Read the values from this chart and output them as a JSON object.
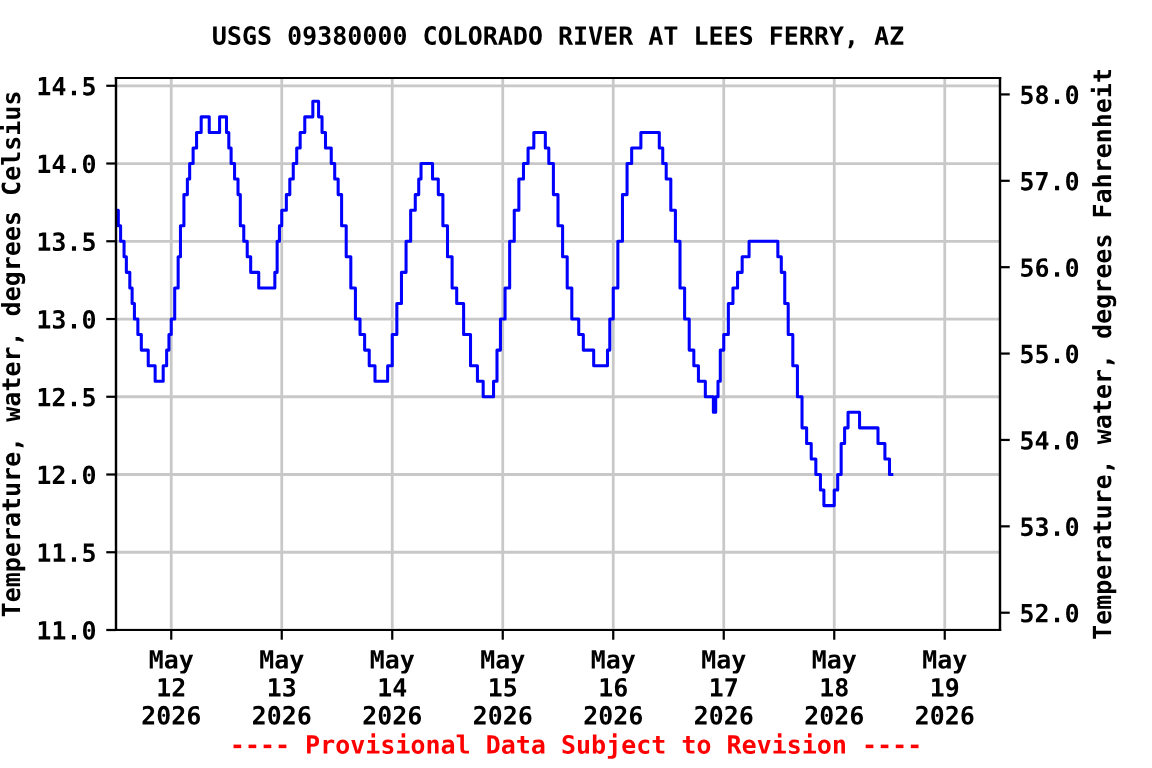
{
  "chart_data": {
    "type": "step",
    "title": "USGS 09380000 COLORADO RIVER AT LEES FERRY, AZ",
    "ylabel": "Temperature, water, degrees Celsius",
    "y2label": "Temperature, water, degrees Fahrenheit",
    "annotations": [
      "---- Provisional Data Subject to Revision ----"
    ],
    "series": [
      {
        "color": "#0000ff",
        "x": [
          "2026-05-11T12:00",
          "2026-05-11T12:30",
          "2026-05-11T13:00",
          "2026-05-11T13:45",
          "2026-05-11T14:15",
          "2026-05-11T15:00",
          "2026-05-11T15:30",
          "2026-05-11T16:00",
          "2026-05-11T16:45",
          "2026-05-11T17:30",
          "2026-05-11T19:00",
          "2026-05-11T20:30",
          "2026-05-11T22:15",
          "2026-05-11T23:00",
          "2026-05-11T23:30",
          "2026-05-12T00:00",
          "2026-05-12T00:45",
          "2026-05-12T01:30",
          "2026-05-12T02:00",
          "2026-05-12T02:45",
          "2026-05-12T03:30",
          "2026-05-12T04:00",
          "2026-05-12T04:45",
          "2026-05-12T05:30",
          "2026-05-12T06:30",
          "2026-05-12T08:15",
          "2026-05-12T10:30",
          "2026-05-12T12:00",
          "2026-05-12T12:30",
          "2026-05-12T13:00",
          "2026-05-12T13:45",
          "2026-05-12T14:30",
          "2026-05-12T15:00",
          "2026-05-12T15:45",
          "2026-05-12T16:30",
          "2026-05-12T17:15",
          "2026-05-12T19:00",
          "2026-05-12T22:30",
          "2026-05-12T23:00",
          "2026-05-12T23:30",
          "2026-05-13T00:00",
          "2026-05-13T01:00",
          "2026-05-13T01:45",
          "2026-05-13T02:30",
          "2026-05-13T03:15",
          "2026-05-13T04:00",
          "2026-05-13T05:00",
          "2026-05-13T06:45",
          "2026-05-13T08:00",
          "2026-05-13T08:45",
          "2026-05-13T09:30",
          "2026-05-13T10:45",
          "2026-05-13T11:30",
          "2026-05-13T12:15",
          "2026-05-13T13:00",
          "2026-05-13T14:00",
          "2026-05-13T15:00",
          "2026-05-13T16:00",
          "2026-05-13T17:00",
          "2026-05-13T18:00",
          "2026-05-13T19:00",
          "2026-05-13T20:15",
          "2026-05-13T23:00",
          "2026-05-14T00:00",
          "2026-05-14T01:00",
          "2026-05-14T02:00",
          "2026-05-14T03:00",
          "2026-05-14T04:00",
          "2026-05-14T05:00",
          "2026-05-14T05:45",
          "2026-05-14T06:15",
          "2026-05-14T08:45",
          "2026-05-14T10:00",
          "2026-05-14T11:00",
          "2026-05-14T12:00",
          "2026-05-14T13:00",
          "2026-05-14T14:00",
          "2026-05-14T15:30",
          "2026-05-14T17:00",
          "2026-05-14T18:30",
          "2026-05-14T19:45",
          "2026-05-14T22:00",
          "2026-05-14T22:45",
          "2026-05-14T23:30",
          "2026-05-15T00:30",
          "2026-05-15T01:30",
          "2026-05-15T02:30",
          "2026-05-15T03:30",
          "2026-05-15T04:30",
          "2026-05-15T05:30",
          "2026-05-15T06:45",
          "2026-05-15T09:15",
          "2026-05-15T10:00",
          "2026-05-15T11:00",
          "2026-05-15T12:00",
          "2026-05-15T13:00",
          "2026-05-15T14:00",
          "2026-05-15T15:00",
          "2026-05-15T16:30",
          "2026-05-15T17:30",
          "2026-05-15T19:45",
          "2026-05-15T22:45",
          "2026-05-15T23:15",
          "2026-05-16T00:00",
          "2026-05-16T01:00",
          "2026-05-16T02:00",
          "2026-05-16T03:00",
          "2026-05-16T04:00",
          "2026-05-16T06:00",
          "2026-05-16T10:00",
          "2026-05-16T10:45",
          "2026-05-16T11:30",
          "2026-05-16T12:30",
          "2026-05-16T13:30",
          "2026-05-16T14:30",
          "2026-05-16T15:30",
          "2026-05-16T16:30",
          "2026-05-16T17:30",
          "2026-05-16T18:30",
          "2026-05-16T20:00",
          "2026-05-16T21:45",
          "2026-05-16T22:15",
          "2026-05-16T22:45",
          "2026-05-16T23:15",
          "2026-05-17T00:00",
          "2026-05-17T01:00",
          "2026-05-17T02:00",
          "2026-05-17T03:00",
          "2026-05-17T04:00",
          "2026-05-17T05:30",
          "2026-05-17T11:45",
          "2026-05-17T12:30",
          "2026-05-17T13:15",
          "2026-05-17T14:00",
          "2026-05-17T15:00",
          "2026-05-17T16:00",
          "2026-05-17T17:00",
          "2026-05-17T18:00",
          "2026-05-17T19:00",
          "2026-05-17T20:00",
          "2026-05-17T21:00",
          "2026-05-17T21:45",
          "2026-05-18T00:00",
          "2026-05-18T00:45",
          "2026-05-18T01:30",
          "2026-05-18T02:15",
          "2026-05-18T03:00",
          "2026-05-18T05:30",
          "2026-05-18T09:30",
          "2026-05-18T11:00",
          "2026-05-18T12:00",
          "2026-05-18T12:30"
        ],
        "values": [
          13.7,
          13.6,
          13.5,
          13.4,
          13.3,
          13.2,
          13.1,
          13.0,
          12.9,
          12.8,
          12.7,
          12.6,
          12.7,
          12.8,
          12.9,
          13.0,
          13.2,
          13.4,
          13.6,
          13.8,
          13.9,
          14.0,
          14.1,
          14.2,
          14.3,
          14.2,
          14.3,
          14.2,
          14.1,
          14.0,
          13.9,
          13.8,
          13.6,
          13.5,
          13.4,
          13.3,
          13.2,
          13.3,
          13.5,
          13.6,
          13.7,
          13.8,
          13.9,
          14.0,
          14.1,
          14.2,
          14.3,
          14.4,
          14.3,
          14.2,
          14.1,
          14.0,
          13.9,
          13.8,
          13.6,
          13.4,
          13.2,
          13.0,
          12.9,
          12.8,
          12.7,
          12.6,
          12.7,
          12.9,
          13.1,
          13.3,
          13.5,
          13.7,
          13.8,
          13.9,
          14.0,
          13.9,
          13.8,
          13.6,
          13.4,
          13.2,
          13.1,
          12.9,
          12.7,
          12.6,
          12.5,
          12.6,
          12.8,
          13.0,
          13.2,
          13.5,
          13.7,
          13.9,
          14.0,
          14.1,
          14.2,
          14.1,
          14.0,
          13.8,
          13.6,
          13.4,
          13.2,
          13.0,
          12.9,
          12.8,
          12.7,
          12.8,
          13.0,
          13.2,
          13.5,
          13.8,
          14.0,
          14.1,
          14.2,
          14.1,
          14.0,
          13.9,
          13.7,
          13.5,
          13.2,
          13.0,
          12.8,
          12.7,
          12.6,
          12.5,
          12.4,
          12.5,
          12.6,
          12.8,
          12.9,
          13.1,
          13.2,
          13.3,
          13.4,
          13.5,
          13.4,
          13.3,
          13.1,
          12.9,
          12.7,
          12.5,
          12.3,
          12.2,
          12.1,
          12.0,
          11.9,
          11.8,
          11.9,
          12.0,
          12.2,
          12.3,
          12.4,
          12.3,
          12.2,
          12.1,
          12.0,
          12.0
        ]
      }
    ],
    "xlim": [
      "2026-05-11T12:00",
      "2026-05-19T12:00"
    ],
    "xticks": [
      {
        "value": "2026-05-12",
        "label": "May\n12\n2026"
      },
      {
        "value": "2026-05-13",
        "label": "May\n13\n2026"
      },
      {
        "value": "2026-05-14",
        "label": "May\n14\n2026"
      },
      {
        "value": "2026-05-15",
        "label": "May\n15\n2026"
      },
      {
        "value": "2026-05-16",
        "label": "May\n16\n2026"
      },
      {
        "value": "2026-05-17",
        "label": "May\n17\n2026"
      },
      {
        "value": "2026-05-18",
        "label": "May\n18\n2026"
      },
      {
        "value": "2026-05-19",
        "label": "May\n19\n2026"
      }
    ],
    "ylim": [
      11.0,
      14.55
    ],
    "yticks": [
      {
        "value": 11,
        "label": "11.0"
      },
      {
        "value": 11.5,
        "label": "11.5"
      },
      {
        "value": 12,
        "label": "12.0"
      },
      {
        "value": 12.5,
        "label": "12.5"
      },
      {
        "value": 13,
        "label": "13.0"
      },
      {
        "value": 13.5,
        "label": "13.5"
      },
      {
        "value": 14,
        "label": "14.0"
      },
      {
        "value": 14.5,
        "label": "14.5"
      }
    ],
    "y2lim": [
      51.8,
      58.19
    ],
    "y2ticks": [
      {
        "value": 52,
        "label": "52.0"
      },
      {
        "value": 53,
        "label": "53.0"
      },
      {
        "value": 54,
        "label": "54.0"
      },
      {
        "value": 55,
        "label": "55.0"
      },
      {
        "value": 56,
        "label": "56.0"
      },
      {
        "value": 57,
        "label": "57.0"
      },
      {
        "value": 58,
        "label": "58.0"
      }
    ],
    "grid": true,
    "legend": false,
    "marker": "none",
    "line_style": "solid"
  }
}
